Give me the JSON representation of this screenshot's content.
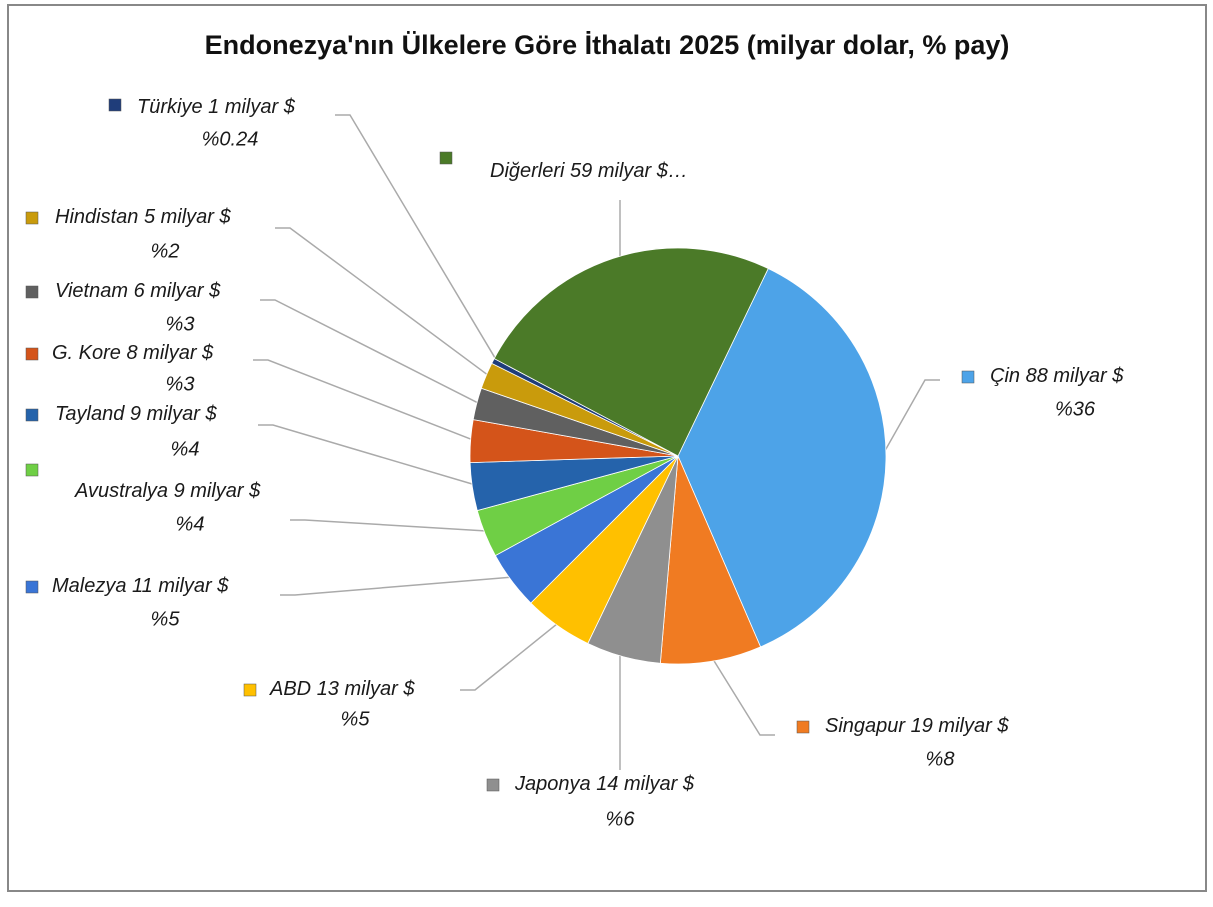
{
  "chart_data": {
    "type": "pie",
    "title": "Endonezya'nın Ülkelere Göre İthalatı 2025 (milyar dolar, % pay)",
    "categories": [
      "Çin",
      "Singapur",
      "Japonya",
      "ABD",
      "Malezya",
      "Avustralya",
      "Tayland",
      "G. Kore",
      "Vietnam",
      "Hindistan",
      "Türkiye",
      "Diğerleri"
    ],
    "values": [
      88,
      19,
      14,
      13,
      11,
      9,
      9,
      8,
      6,
      5,
      1,
      59
    ],
    "value_labels": [
      "88 milyar $",
      "19 milyar $",
      "14 milyar $",
      "13 milyar $",
      "11 milyar $",
      "9 milyar $",
      "9 milyar $",
      "8 milyar $",
      "6 milyar $",
      "5 milyar $",
      "1 milyar $",
      "59 milyar $…"
    ],
    "percent_labels": [
      "%36",
      "%8",
      "%6",
      "%5",
      "%5",
      "%4",
      "%4",
      "%3",
      "%3",
      "%2",
      "%0.24",
      null
    ],
    "colors": [
      "#4da3e8",
      "#f07b22",
      "#8f8f8f",
      "#ffc000",
      "#3a75d6",
      "#6fcf45",
      "#2563ab",
      "#d4541a",
      "#606060",
      "#c99b0c",
      "#1f3d7a",
      "#4b7a28"
    ]
  }
}
